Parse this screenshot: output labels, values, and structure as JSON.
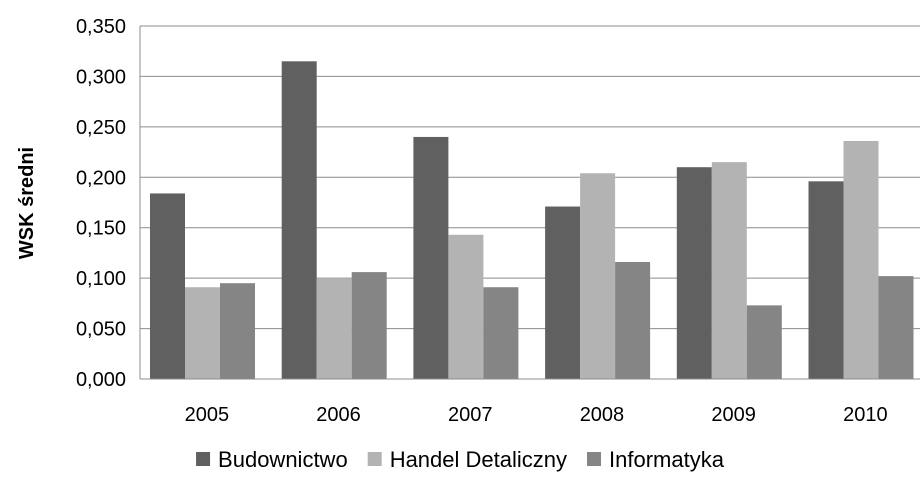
{
  "chart_data": {
    "type": "bar",
    "title": "",
    "xlabel": "",
    "ylabel": "WSK średni",
    "categories": [
      "2005",
      "2006",
      "2007",
      "2008",
      "2009",
      "2010"
    ],
    "ylim": [
      0,
      0.35
    ],
    "yticks": [
      "0,000",
      "0,050",
      "0,100",
      "0,150",
      "0,200",
      "0,250",
      "0,300",
      "0,350"
    ],
    "grid": true,
    "legend_position": "bottom",
    "series": [
      {
        "name": "Budownictwo",
        "color": "#606060",
        "values": [
          0.184,
          0.315,
          0.24,
          0.171,
          0.21,
          0.196
        ]
      },
      {
        "name": "Handel Detaliczny",
        "color": "#b3b3b3",
        "values": [
          0.091,
          0.1,
          0.143,
          0.204,
          0.215,
          0.236
        ]
      },
      {
        "name": "Informatyka",
        "color": "#858585",
        "values": [
          0.095,
          0.106,
          0.091,
          0.116,
          0.073,
          0.102
        ]
      }
    ]
  }
}
